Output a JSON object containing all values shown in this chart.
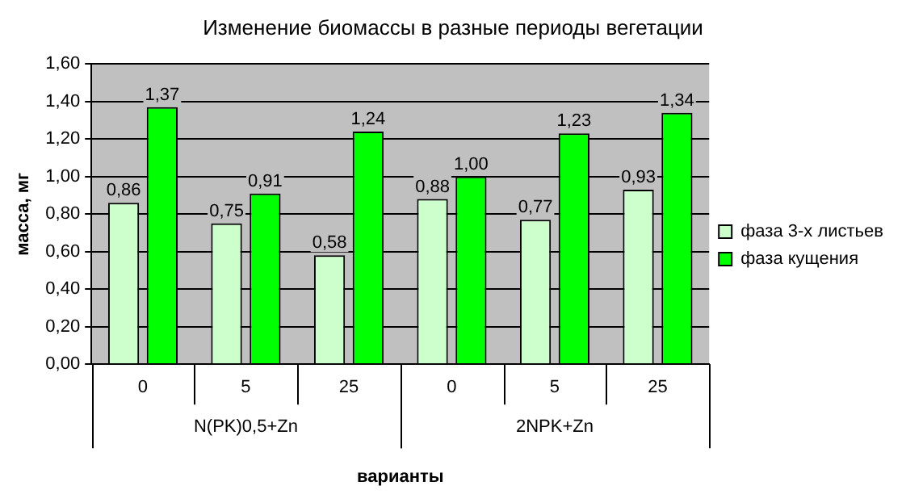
{
  "chart_data": {
    "type": "bar",
    "title": "Изменение биомассы в разные периоды вегетации",
    "xlabel": "варианты",
    "ylabel": "масса, мг",
    "categories": [
      "0",
      "5",
      "25",
      "0",
      "5",
      "25"
    ],
    "annotations": [
      "N(PK)0,5+Zn",
      "2NPK+Zn"
    ],
    "series": [
      {
        "name": "фаза 3-х листьев",
        "color": "#ccffcc",
        "values": [
          0.86,
          0.75,
          0.58,
          0.88,
          0.77,
          0.93
        ],
        "value_labels": [
          "0,86",
          "0,75",
          "0,58",
          "0,88",
          "0,77",
          "0,93"
        ]
      },
      {
        "name": "фаза кущения",
        "color": "#00ff00",
        "values": [
          1.37,
          0.91,
          1.24,
          1.0,
          1.23,
          1.34
        ],
        "value_labels": [
          "1,37",
          "0,91",
          "1,24",
          "1,00",
          "1,23",
          "1,34"
        ]
      }
    ],
    "ylim": [
      0,
      1.6
    ],
    "yticks": [
      {
        "value": 0,
        "label": "0,00"
      },
      {
        "value": 0.2,
        "label": "0,20"
      },
      {
        "value": 0.4,
        "label": "0,40"
      },
      {
        "value": 0.6,
        "label": "0,60"
      },
      {
        "value": 0.8,
        "label": "0,80"
      },
      {
        "value": 1.0,
        "label": "1,00"
      },
      {
        "value": 1.2,
        "label": "1,20"
      },
      {
        "value": 1.4,
        "label": "1,40"
      },
      {
        "value": 1.6,
        "label": "1,60"
      }
    ],
    "grid": "y",
    "legend": "right"
  }
}
